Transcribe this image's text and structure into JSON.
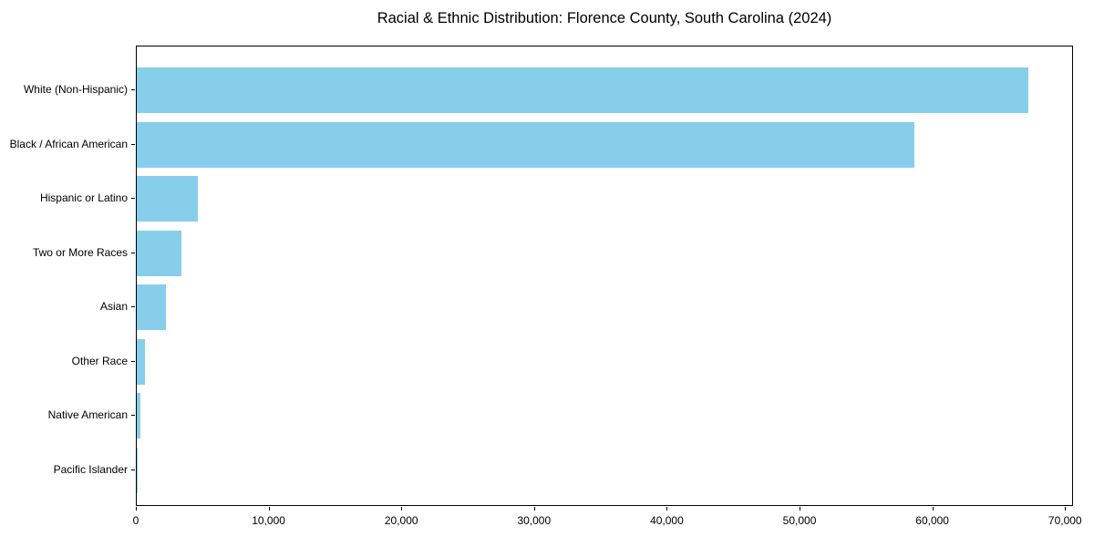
{
  "title": "Racial & Ethnic Distribution: Florence County, South Carolina (2024)",
  "chart_data": {
    "type": "bar",
    "orientation": "horizontal",
    "title": "Racial & Ethnic Distribution: Florence County, South Carolina (2024)",
    "categories": [
      "White (Non-Hispanic)",
      "Black / African American",
      "Hispanic or Latino",
      "Two or More Races",
      "Asian",
      "Other Race",
      "Native American",
      "Pacific Islander"
    ],
    "values": [
      67300,
      58700,
      4600,
      3400,
      2200,
      590,
      250,
      70
    ],
    "xlabel": "",
    "ylabel": "",
    "xlim": [
      0,
      70600
    ],
    "x_ticks": [
      0,
      10000,
      20000,
      30000,
      40000,
      50000,
      60000,
      70000
    ],
    "x_tick_labels": [
      "0",
      "10,000",
      "20,000",
      "30,000",
      "40,000",
      "50,000",
      "60,000",
      "70,000"
    ],
    "bar_color": "#87CEEB",
    "axis_color": "#000000",
    "grid": false,
    "legend": null
  }
}
